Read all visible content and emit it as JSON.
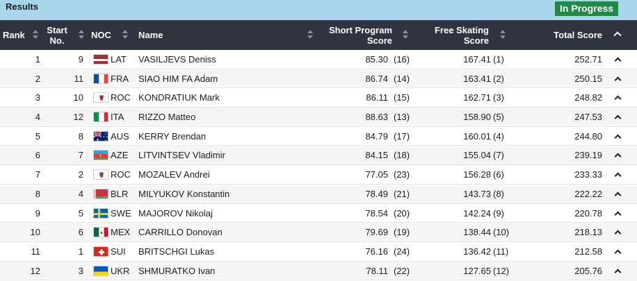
{
  "header": {
    "title": "Results",
    "status_badge": "In Progress"
  },
  "columns": {
    "rank": "Rank",
    "start_line1": "Start",
    "start_line2": "No.",
    "noc": "NOC",
    "name": "Name",
    "sp_line1": "Short Program",
    "sp_line2": "Score",
    "fs_line1": "Free Skating",
    "fs_line2": "Score",
    "total": "Total Score"
  },
  "rows": [
    {
      "rank": "1",
      "start": "9",
      "noc": "LAT",
      "name": "VASILJEVS Deniss",
      "sp": "85.30",
      "sp_rank": "(16)",
      "fs": "167.41",
      "fs_rank": "(1)",
      "total": "252.71"
    },
    {
      "rank": "2",
      "start": "11",
      "noc": "FRA",
      "name": "SIAO HIM FA Adam",
      "sp": "86.74",
      "sp_rank": "(14)",
      "fs": "163.41",
      "fs_rank": "(2)",
      "total": "250.15"
    },
    {
      "rank": "3",
      "start": "10",
      "noc": "ROC",
      "name": "KONDRATIUK Mark",
      "sp": "86.11",
      "sp_rank": "(15)",
      "fs": "162.71",
      "fs_rank": "(3)",
      "total": "248.82"
    },
    {
      "rank": "4",
      "start": "12",
      "noc": "ITA",
      "name": "RIZZO Matteo",
      "sp": "88.63",
      "sp_rank": "(13)",
      "fs": "158.90",
      "fs_rank": "(5)",
      "total": "247.53"
    },
    {
      "rank": "5",
      "start": "8",
      "noc": "AUS",
      "name": "KERRY Brendan",
      "sp": "84.79",
      "sp_rank": "(17)",
      "fs": "160.01",
      "fs_rank": "(4)",
      "total": "244.80"
    },
    {
      "rank": "6",
      "start": "7",
      "noc": "AZE",
      "name": "LITVINTSEV Vladimir",
      "sp": "84.15",
      "sp_rank": "(18)",
      "fs": "155.04",
      "fs_rank": "(7)",
      "total": "239.19"
    },
    {
      "rank": "7",
      "start": "2",
      "noc": "ROC",
      "name": "MOZALEV Andrei",
      "sp": "77.05",
      "sp_rank": "(23)",
      "fs": "156.28",
      "fs_rank": "(6)",
      "total": "233.33"
    },
    {
      "rank": "8",
      "start": "4",
      "noc": "BLR",
      "name": "MILYUKOV Konstantin",
      "sp": "78.49",
      "sp_rank": "(21)",
      "fs": "143.73",
      "fs_rank": "(8)",
      "total": "222.22"
    },
    {
      "rank": "9",
      "start": "5",
      "noc": "SWE",
      "name": "MAJOROV Nikolaj",
      "sp": "78.54",
      "sp_rank": "(20)",
      "fs": "142.24",
      "fs_rank": "(9)",
      "total": "220.78"
    },
    {
      "rank": "10",
      "start": "6",
      "noc": "MEX",
      "name": "CARRILLO Donovan",
      "sp": "79.69",
      "sp_rank": "(19)",
      "fs": "138.44",
      "fs_rank": "(10)",
      "total": "218.13"
    },
    {
      "rank": "11",
      "start": "1",
      "noc": "SUI",
      "name": "BRITSCHGI Lukas",
      "sp": "76.16",
      "sp_rank": "(24)",
      "fs": "136.42",
      "fs_rank": "(11)",
      "total": "212.58"
    },
    {
      "rank": "12",
      "start": "3",
      "noc": "UKR",
      "name": "SHMURATKO Ivan",
      "sp": "78.11",
      "sp_rank": "(22)",
      "fs": "127.65",
      "fs_rank": "(12)",
      "total": "205.76"
    }
  ],
  "colors": {
    "header_bar": "#a9d5ea",
    "table_head": "#2e3440",
    "badge": "#1f8a48"
  }
}
